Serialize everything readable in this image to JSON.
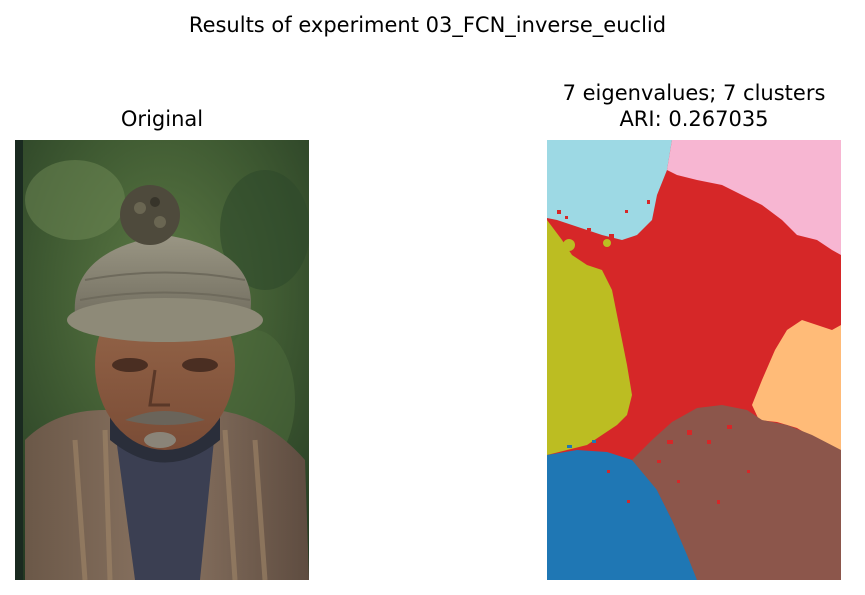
{
  "figure": {
    "suptitle": "Results of experiment 03_FCN_inverse_euclid"
  },
  "panels": [
    {
      "title_lines": [
        "Original"
      ],
      "image": "photo-of-man-in-knitted-hat"
    },
    {
      "title_lines": [
        "7 eigenvalues; 7 clusters",
        "ARI: 0.267035"
      ],
      "image": "segmentation-map",
      "cluster_colors": {
        "sky-blue": "#9dd9e4",
        "pink": "#f7b6d2",
        "red": "#d62728",
        "olive": "#bcbd22",
        "orange": "#ffbb78",
        "blue": "#1f77b4",
        "brown": "#8c564b"
      }
    }
  ]
}
